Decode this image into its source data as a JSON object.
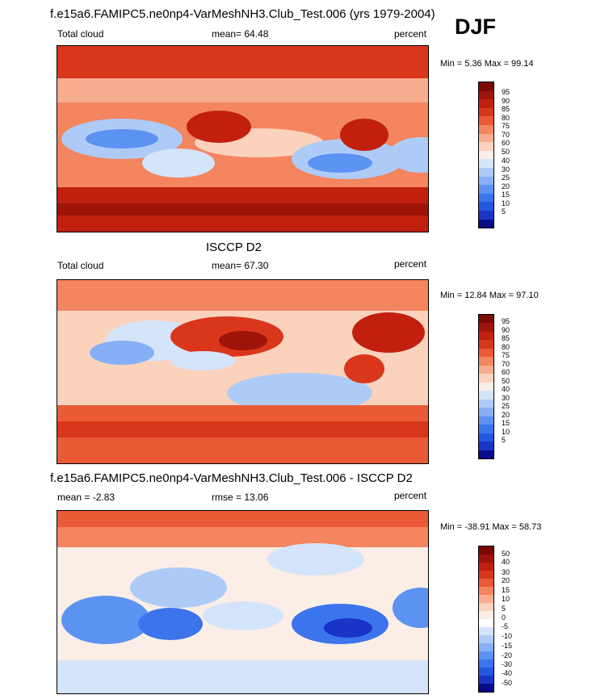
{
  "header": {
    "title": "f.e15a6.FAMIPC5.ne0np4-VarMeshNH3.Club_Test.006 (yrs 1979-2004)",
    "season": "DJF"
  },
  "colors": {
    "ramp11": [
      "#d73027",
      "#f46d43",
      "#fdae61",
      "#fee090",
      "#ffffbf",
      "#e0f3f8",
      "#abd9e9",
      "#74add1",
      "#4575b4"
    ],
    "cloud_levels": [
      "#0a0a8a",
      "#1a34c8",
      "#2456e0",
      "#3c74ec",
      "#5c93f2",
      "#86b0f5",
      "#aecbf7",
      "#d4e4fa",
      "#fbeee6",
      "#fbd3bd",
      "#f8ad8e",
      "#f3855f",
      "#ea5a36",
      "#d9361c",
      "#c2200f",
      "#9e1408",
      "#7a0a04"
    ],
    "diff_levels": [
      "#0a0a8a",
      "#1a34c8",
      "#2456e0",
      "#3c74ec",
      "#5c93f2",
      "#86b0f5",
      "#aecbf7",
      "#d4e4fa",
      "#ffffff",
      "#fbeee6",
      "#fbd3bd",
      "#f8ad8e",
      "#f3855f",
      "#ea5a36",
      "#d9361c",
      "#c2200f",
      "#9e1408",
      "#7a0a04"
    ]
  },
  "chart_data": [
    {
      "type": "heatmap",
      "title": "",
      "left_label": "Total cloud",
      "mean_text": "mean=  64.48",
      "units": "percent",
      "minmax_text": "Min =   5.36 Max =  99.14",
      "min": 5.36,
      "max": 99.14,
      "mean": 64.48,
      "levels": [
        "95",
        "90",
        "85",
        "80",
        "75",
        "70",
        "60",
        "50",
        "40",
        "30",
        "25",
        "20",
        "15",
        "10",
        "5"
      ]
    },
    {
      "type": "heatmap",
      "title": "ISCCP D2",
      "left_label": "Total cloud",
      "mean_text": "mean=  67.30",
      "units": "percent",
      "minmax_text": "Min =  12.84 Max =  97.10",
      "min": 12.84,
      "max": 97.1,
      "mean": 67.3,
      "levels": [
        "95",
        "90",
        "85",
        "80",
        "75",
        "70",
        "60",
        "50",
        "40",
        "30",
        "25",
        "20",
        "15",
        "10",
        "5"
      ]
    },
    {
      "type": "heatmap",
      "title": "f.e15a6.FAMIPC5.ne0np4-VarMeshNH3.Club_Test.006 - ISCCP D2",
      "left_label": "mean =  -2.83",
      "mean_text": "rmse =  13.06",
      "units": "percent",
      "minmax_text": "Min = -38.91 Max =  58.73",
      "min": -38.91,
      "max": 58.73,
      "mean": -2.83,
      "rmse": 13.06,
      "levels": [
        "50",
        "40",
        "30",
        "20",
        "15",
        "10",
        "5",
        "0",
        "-5",
        "-10",
        "-15",
        "-20",
        "-30",
        "-40",
        "-50"
      ]
    }
  ]
}
